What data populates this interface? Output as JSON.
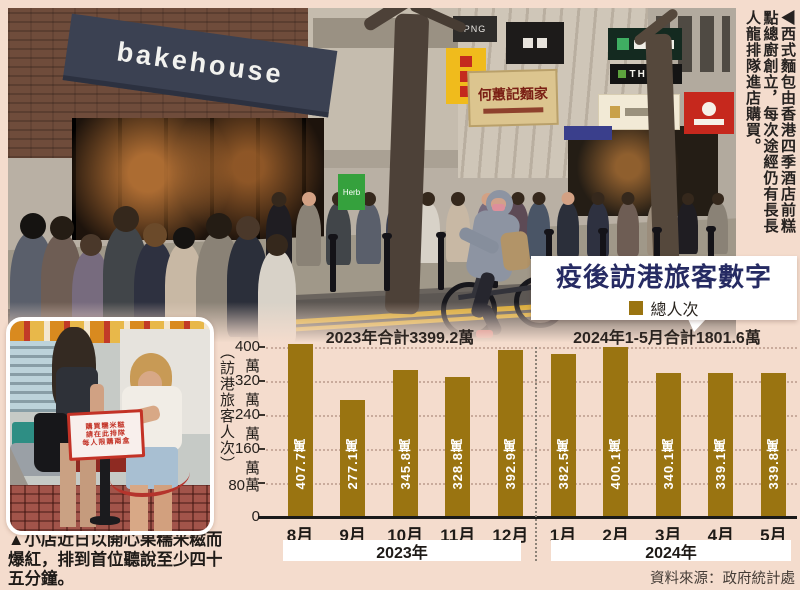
{
  "photo_main": {
    "signs": {
      "awning": "bakehouse",
      "png": "PNG",
      "noodle_shop": "何蕙記麵家",
      "thann": "THANN",
      "herb": "Herb"
    }
  },
  "caption_right_vertical": "◀西式麵包由香港四季酒店前糕點總廚創立，每次途經仍有長長人龍排隊進店購買。",
  "photo_small": {
    "sign_lines": [
      "購買糯米糍",
      "請在此排隊",
      "每人限購兩盒"
    ]
  },
  "caption_bottom": "▲小店近日以開心果糯米糍而爆紅，排到首位聽說至少四十五分鐘。",
  "chart": {
    "title": "疫後訪港旅客數字",
    "legend": "總人次",
    "group_headers": [
      "2023年合計3399.2萬",
      "2024年1-5月合計1801.6萬"
    ],
    "y_axis_label": "（訪港旅客人次）",
    "y_ticks": [
      "400萬",
      "320萬",
      "240萬",
      "160萬",
      "80萬",
      "0"
    ],
    "bar_color": "#9a7411",
    "source": "資料來源：政府統計處"
  },
  "chart_data": {
    "type": "bar",
    "title": "疫後訪港旅客數字",
    "ylabel": "訪港旅客人次",
    "unit": "萬",
    "ylim": [
      0,
      400
    ],
    "grid": "dotted-horizontal",
    "legend_position": "top",
    "categories": [
      "8月",
      "9月",
      "10月",
      "11月",
      "12月",
      "1月",
      "2月",
      "3月",
      "4月",
      "5月"
    ],
    "values": [
      407.7,
      277.1,
      345.8,
      328.8,
      392.9,
      382.5,
      400.1,
      340.1,
      339.1,
      339.8
    ],
    "series": [
      {
        "name": "總人次",
        "values": [
          407.7,
          277.1,
          345.8,
          328.8,
          392.9,
          382.5,
          400.1,
          340.1,
          339.1,
          339.8
        ]
      }
    ],
    "groups": [
      {
        "label": "2023年",
        "count": 5,
        "total_note": "2023年合計3399.2萬"
      },
      {
        "label": "2024年",
        "count": 5,
        "total_note": "2024年1-5月合計1801.6萬"
      }
    ]
  }
}
